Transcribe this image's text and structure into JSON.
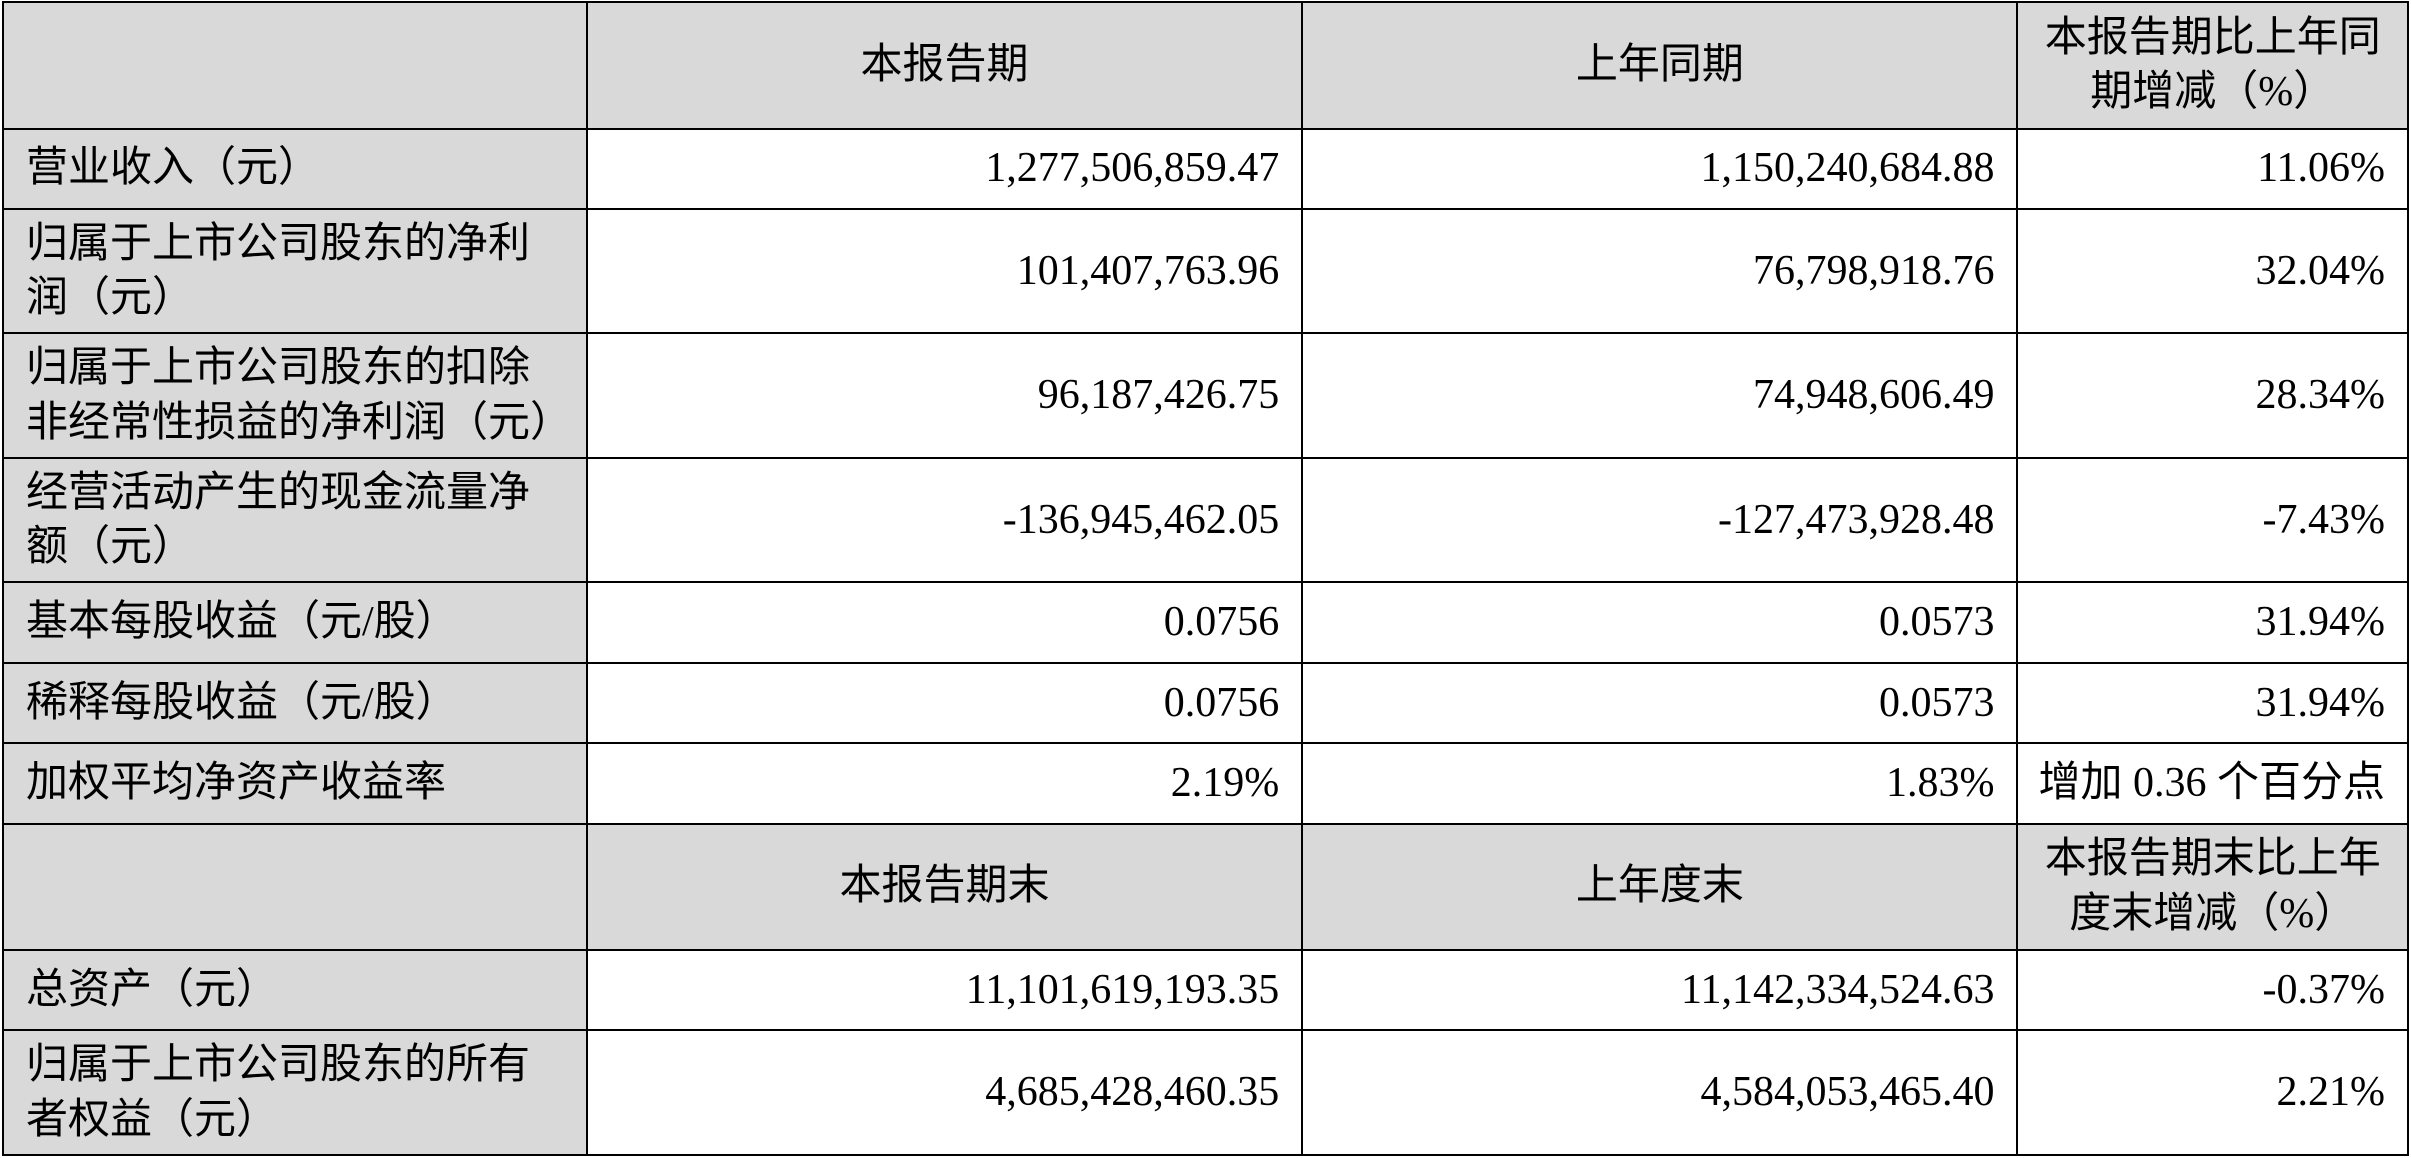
{
  "table": {
    "colors": {
      "header_bg": "#d9d9d9",
      "border": "#000000",
      "text": "#000000",
      "cell_bg": "#ffffff"
    },
    "font_size_pt": 32,
    "header1": {
      "c0": "",
      "c1": "本报告期",
      "c2": "上年同期",
      "c3": "本报告期比上年同期增减（%）"
    },
    "rows1": [
      {
        "label": "营业收入（元）",
        "v1": "1,277,506,859.47",
        "v2": "1,150,240,684.88",
        "v3": "11.06%",
        "lines": 1
      },
      {
        "label": "归属于上市公司股东的净利润（元）",
        "v1": "101,407,763.96",
        "v2": "76,798,918.76",
        "v3": "32.04%",
        "lines": 2
      },
      {
        "label": "归属于上市公司股东的扣除非经常性损益的净利润（元）",
        "v1": "96,187,426.75",
        "v2": "74,948,606.49",
        "v3": "28.34%",
        "lines": 2
      },
      {
        "label": "经营活动产生的现金流量净额（元）",
        "v1": "-136,945,462.05",
        "v2": "-127,473,928.48",
        "v3": "-7.43%",
        "lines": 2
      },
      {
        "label": "基本每股收益（元/股）",
        "v1": "0.0756",
        "v2": "0.0573",
        "v3": "31.94%",
        "lines": 1
      },
      {
        "label": "稀释每股收益（元/股）",
        "v1": "0.0756",
        "v2": "0.0573",
        "v3": "31.94%",
        "lines": 1
      },
      {
        "label": "加权平均净资产收益率",
        "v1": "2.19%",
        "v2": "1.83%",
        "v3": "增加 0.36 个百分点",
        "lines": 1
      }
    ],
    "header2": {
      "c0": "",
      "c1": "本报告期末",
      "c2": "上年度末",
      "c3": "本报告期末比上年度末增减（%）"
    },
    "rows2": [
      {
        "label": "总资产（元）",
        "v1": "11,101,619,193.35",
        "v2": "11,142,334,524.63",
        "v3": "-0.37%",
        "lines": 1
      },
      {
        "label": "归属于上市公司股东的所有者权益（元）",
        "v1": "4,685,428,460.35",
        "v2": "4,584,053,465.40",
        "v3": "2.21%",
        "lines": 2
      }
    ]
  }
}
